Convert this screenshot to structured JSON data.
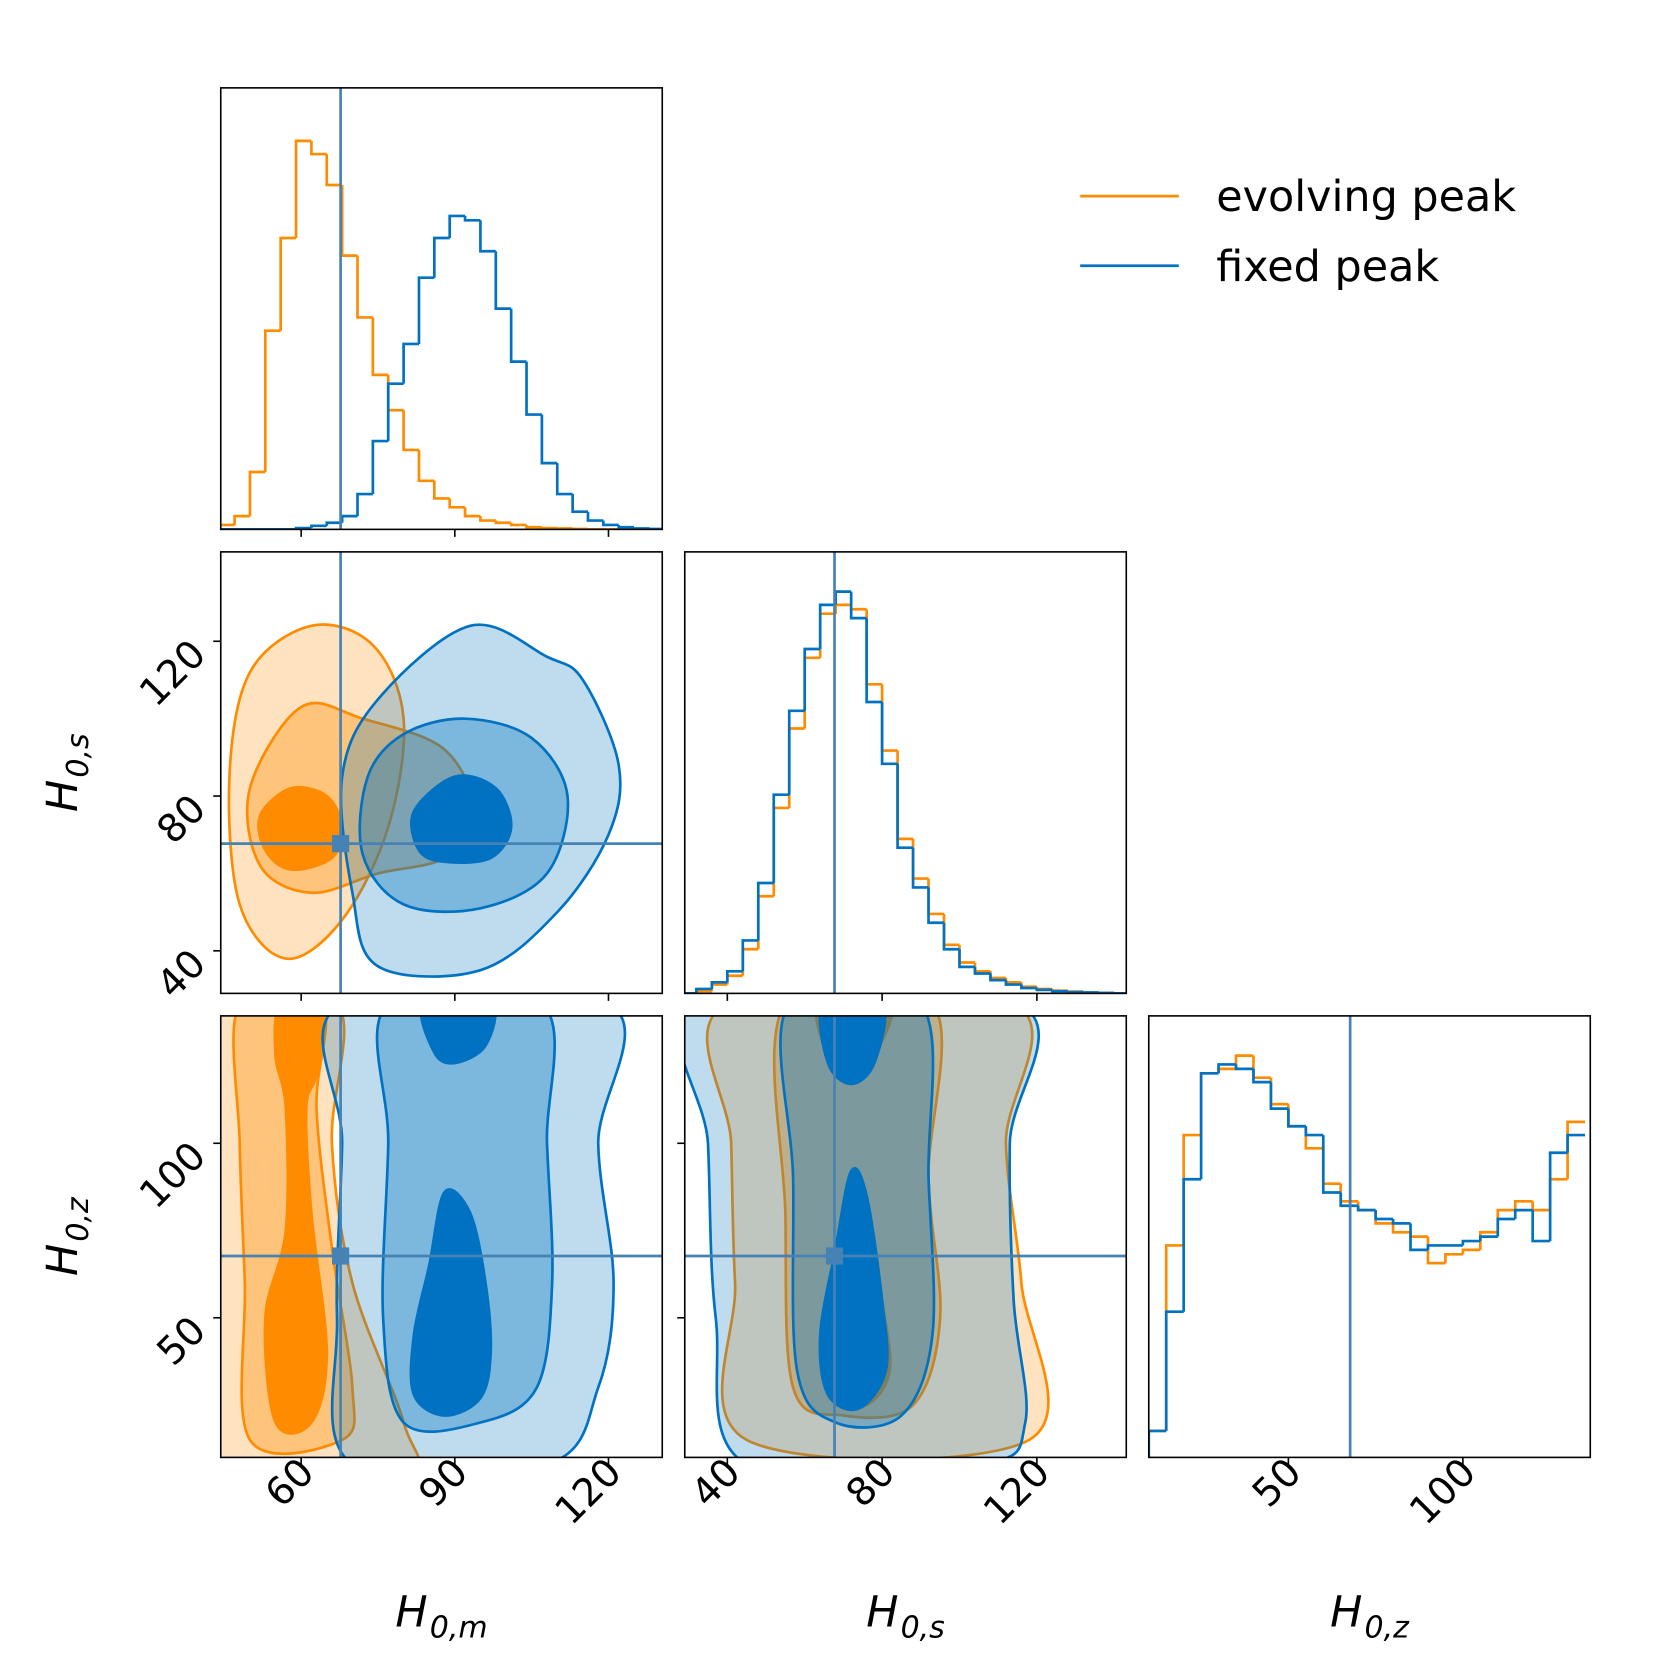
{
  "chart_data": {
    "type": "corner",
    "hist_ylim": [
      0,
      1
    ],
    "contour_alphas": [
      0.25,
      0.35,
      1
    ],
    "truth_color": "#4682b4",
    "legend": "upper right",
    "parameters": [
      {
        "symbol": "H",
        "subscript": "0,m",
        "lim": [
          44.3,
          130.5
        ],
        "ticks": [
          60,
          90,
          120
        ],
        "truth": 67.7,
        "bins": [
          44,
          47,
          50,
          53,
          56,
          59,
          62,
          65,
          68,
          71,
          74,
          77,
          80,
          83,
          86,
          89,
          92,
          95,
          98,
          101,
          104,
          107,
          110,
          113,
          116,
          119,
          122,
          125,
          128,
          131
        ]
      },
      {
        "symbol": "H",
        "subscript": "0,s",
        "lim": [
          29,
          143.1
        ],
        "ticks": [
          40,
          80,
          120
        ],
        "truth": 67.7,
        "bins": [
          28,
          32,
          36,
          40,
          44,
          48,
          52,
          56,
          60,
          64,
          68,
          72,
          76,
          80,
          84,
          88,
          92,
          96,
          100,
          104,
          108,
          112,
          116,
          120,
          124,
          128,
          132,
          136,
          140,
          144
        ]
      },
      {
        "symbol": "H",
        "subscript": "0,z",
        "lim": [
          10,
          136.5
        ],
        "ticks": [
          50,
          100
        ],
        "truth": 67.7,
        "bins": [
          10,
          15,
          20,
          25,
          30,
          35,
          40,
          45,
          50,
          55,
          60,
          65,
          70,
          75,
          80,
          85,
          90,
          95,
          100,
          105,
          110,
          115,
          120,
          125,
          130,
          135
        ]
      }
    ],
    "series": [
      {
        "name": "evolving peak",
        "color": "#ff8c00",
        "histograms": [
          [
            0.01,
            0.03,
            0.13,
            0.45,
            0.66,
            0.88,
            0.85,
            0.78,
            0.62,
            0.48,
            0.35,
            0.27,
            0.18,
            0.11,
            0.07,
            0.05,
            0.03,
            0.02,
            0.015,
            0.01,
            0.005,
            0.003,
            0.002,
            0.001,
            0,
            0,
            0,
            0,
            0
          ],
          [
            0,
            0.005,
            0.02,
            0.04,
            0.1,
            0.22,
            0.42,
            0.6,
            0.76,
            0.86,
            0.88,
            0.87,
            0.7,
            0.55,
            0.35,
            0.26,
            0.18,
            0.11,
            0.07,
            0.05,
            0.035,
            0.025,
            0.015,
            0.01,
            0.006,
            0.004,
            0.002,
            0.001,
            0
          ],
          [
            0.06,
            0.48,
            0.73,
            0.87,
            0.88,
            0.91,
            0.86,
            0.8,
            0.75,
            0.7,
            0.62,
            0.58,
            0.56,
            0.53,
            0.51,
            0.5,
            0.44,
            0.46,
            0.47,
            0.51,
            0.56,
            0.58,
            0.56,
            0.63,
            0.76
          ]
        ],
        "contours": [
          [
            [
              {
                "x": [
                  62,
                  74,
                  80,
                  77,
                  68,
                  57,
                  48,
                  46,
                  50
                ],
                "y": [
                  124,
                  119,
                  100,
                  72,
                  48,
                  38,
                  52,
                  85,
                  112
                ]
              }
            ],
            [
              {
                "x": [
                  60,
                  72,
                  88,
                  94,
                  88,
                  75,
                  62,
                  52,
                  50
                ],
                "y": [
                  103,
                  100,
                  92,
                  75,
                  64,
                  60,
                  55,
                  62,
                  82
                ]
              }
            ],
            [
              {
                "x": [
                  58,
                  65,
                  68,
                  66,
                  58,
                  53,
                  52
                ],
                "y": [
                  82,
                  80,
                  72,
                  64,
                  61,
                  66,
                  75
                ]
              }
            ]
          ],
          [
            [
              {
                "x": [
                  43,
                  67,
                  66,
                  70,
                  80,
                  80,
                  43
                ],
                "y": [
                  140,
                  140,
                  100,
                  60,
                  20,
                  5,
                  5
                ]
              }
            ],
            [
              {
                "x": [
                  48,
                  64,
                  63,
                  66,
                  70,
                  68,
                  50,
                  49,
                  48
                ],
                "y": [
                  140,
                  140,
                  110,
                  70,
                  30,
                  15,
                  15,
                  60,
                  100
                ]
              }
            ],
            [
              {
                "x": [
                  56,
                  64,
                  63,
                  61,
                  62,
                  65,
                  62,
                  55,
                  53,
                  57,
                  57,
                  55
                ],
                "y": [
                  140,
                  140,
                  120,
                  110,
                  80,
                  40,
                  20,
                  20,
                  50,
                  75,
                  110,
                  125
                ]
              }
            ]
          ],
          [
            [
              {
                "x": [
                  40,
                  114,
                  112,
                  116,
                  118,
                  45,
                  42,
                  41
                ],
                "y": [
                  140,
                  140,
                  100,
                  60,
                  15,
                  15,
                  60,
                  100
                ]
              }
            ],
            [
              {
                "x": [
                  55,
                  93,
                  92,
                  95,
                  88,
                  70,
                  57,
                  55
                ],
                "y": [
                  140,
                  140,
                  90,
                  50,
                  25,
                  22,
                  30,
                  80
                ]
              }
            ],
            [
              {
                "x": [
                  64,
                  82,
                  78,
                  72,
                  66
                ],
                "y": [
                  140,
                  140,
                  125,
                  118,
                  125
                ]
              },
              {
                "x": [
                  73,
                  77,
                  80,
                  82,
                  76,
                  68,
                  66,
                  69
                ],
                "y": [
                  83,
                  78,
                  55,
                  35,
                  25,
                  28,
                  45,
                  65
                ]
              }
            ]
          ]
        ]
      },
      {
        "name": "fixed peak",
        "color": "#0072c1",
        "histograms": [
          [
            0,
            0,
            0,
            0,
            0,
            0.003,
            0.008,
            0.015,
            0.03,
            0.08,
            0.2,
            0.33,
            0.42,
            0.57,
            0.66,
            0.71,
            0.7,
            0.63,
            0.5,
            0.38,
            0.26,
            0.15,
            0.08,
            0.04,
            0.02,
            0.01,
            0.005,
            0.002,
            0.001
          ],
          [
            0,
            0.01,
            0.025,
            0.05,
            0.12,
            0.25,
            0.45,
            0.64,
            0.78,
            0.88,
            0.91,
            0.85,
            0.66,
            0.52,
            0.33,
            0.24,
            0.16,
            0.1,
            0.06,
            0.045,
            0.03,
            0.02,
            0.012,
            0.008,
            0.005,
            0.003,
            0.002,
            0.001,
            0
          ],
          [
            0.06,
            0.33,
            0.63,
            0.87,
            0.89,
            0.88,
            0.85,
            0.79,
            0.75,
            0.73,
            0.6,
            0.57,
            0.56,
            0.54,
            0.53,
            0.47,
            0.48,
            0.48,
            0.49,
            0.5,
            0.54,
            0.56,
            0.49,
            0.69,
            0.73
          ]
        ],
        "contours": [
          [
            [
              {
                "x": [
                  93,
                  108,
                  115,
                  122,
                  120,
                  110,
                  95,
                  75,
                  70,
                  68,
                  75
                ],
                "y": [
                  124,
                  116,
                  110,
                  88,
                  70,
                  50,
                  35,
                  36,
                  55,
                  85,
                  105
                ]
              }
            ],
            [
              {
                "x": [
                  92,
                  105,
                  112,
                  108,
                  95,
                  80,
                  72,
                  73,
                  80
                ],
                "y": [
                  100,
                  95,
                  80,
                  60,
                  51,
                  52,
                  65,
                  85,
                  96
                ]
              }
            ],
            [
              {
                "x": [
                  90,
                  98,
                  101,
                  97,
                  88,
                  83,
                  82
                ],
                "y": [
                  85,
                  82,
                  72,
                  64,
                  63,
                  66,
                  76
                ]
              }
            ]
          ],
          [
            [
              {
                "x": [
                  68,
                  120,
                  118,
                  121,
                  118,
                  108,
                  70,
                  67,
                  68
                ],
                "y": [
                  140,
                  140,
                  100,
                  60,
                  30,
                  8,
                  8,
                  50,
                  100
                ]
              }
            ],
            [
              {
                "x": [
                  77,
                  107,
                  108,
                  109,
                  106,
                  95,
                  80,
                  76,
                  77
                ],
                "y": [
                  140,
                  140,
                  100,
                  60,
                  30,
                  20,
                  20,
                  50,
                  100
                ]
              }
            ],
            [
              {
                "x": [
                  84,
                  97,
                  96,
                  90,
                  86
                ],
                "y": [
                  140,
                  140,
                  128,
                  123,
                  126
                ]
              },
              {
                "x": [
                  88,
                  93,
                  96,
                  97,
                  95,
                  88,
                  82,
                  82,
                  85
                ],
                "y": [
                  86,
                  80,
                  60,
                  40,
                  27,
                  22,
                  28,
                  45,
                  65
                ]
              }
            ]
          ],
          [
            [
              {
                "x": [
                  33,
                  115,
                  113,
                  114,
                  117,
                  105,
                  45,
                  37,
                  35
                ],
                "y": [
                  140,
                  140,
                  100,
                  55,
                  20,
                  8,
                  8,
                  50,
                  100
                ]
              }
            ],
            [
              {
                "x": [
                  56,
                  90,
                  92,
                  93,
                  85,
                  68,
                  58,
                  57
                ],
                "y": [
                  140,
                  140,
                  90,
                  45,
                  22,
                  20,
                  35,
                  90
                ]
              }
            ],
            [
              {
                "x": [
                  65,
                  80,
                  78,
                  72,
                  66
                ],
                "y": [
                  140,
                  140,
                  123,
                  117,
                  123
                ]
              },
              {
                "x": [
                  72,
                  76,
                  80,
                  81,
                  74,
                  66,
                  64,
                  68
                ],
                "y": [
                  92,
                  85,
                  55,
                  35,
                  24,
                  28,
                  45,
                  70
                ]
              }
            ]
          ]
        ]
      }
    ]
  }
}
